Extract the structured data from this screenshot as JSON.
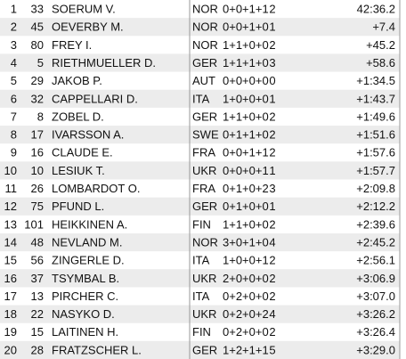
{
  "table": {
    "rows": [
      [
        1,
        33,
        "SOERUM V.",
        "NOR",
        "0+0+1+1",
        2,
        "42:36.2"
      ],
      [
        2,
        45,
        "OEVERBY M.",
        "NOR",
        "0+0+1+0",
        1,
        "+7.4"
      ],
      [
        3,
        80,
        "FREY I.",
        "NOR",
        "1+1+0+0",
        2,
        "+45.2"
      ],
      [
        4,
        5,
        "RIETHMUELLER D.",
        "GER",
        "1+1+1+0",
        3,
        "+58.6"
      ],
      [
        5,
        29,
        "JAKOB P.",
        "AUT",
        "0+0+0+0",
        0,
        "+1:34.5"
      ],
      [
        6,
        32,
        "CAPPELLARI D.",
        "ITA",
        "1+0+0+0",
        1,
        "+1:43.7"
      ],
      [
        7,
        8,
        "ZOBEL D.",
        "GER",
        "1+1+0+0",
        2,
        "+1:49.6"
      ],
      [
        8,
        17,
        "IVARSSON A.",
        "SWE",
        "0+1+1+0",
        2,
        "+1:51.6"
      ],
      [
        9,
        16,
        "CLAUDE E.",
        "FRA",
        "0+0+1+1",
        2,
        "+1:57.6"
      ],
      [
        10,
        10,
        "LESIUK T.",
        "UKR",
        "0+0+0+1",
        1,
        "+1:57.7"
      ],
      [
        11,
        26,
        "LOMBARDOT O.",
        "FRA",
        "0+1+0+2",
        3,
        "+2:09.8"
      ],
      [
        12,
        75,
        "PFUND L.",
        "GER",
        "0+1+0+0",
        1,
        "+2:12.2"
      ],
      [
        13,
        101,
        "HEIKKINEN A.",
        "FIN",
        "1+1+0+0",
        2,
        "+2:39.6"
      ],
      [
        14,
        48,
        "NEVLAND M.",
        "NOR",
        "3+0+1+0",
        4,
        "+2:45.2"
      ],
      [
        15,
        56,
        "ZINGERLE D.",
        "ITA",
        "1+0+0+1",
        2,
        "+2:56.1"
      ],
      [
        16,
        37,
        "TSYMBAL B.",
        "UKR",
        "2+0+0+0",
        2,
        "+3:06.9"
      ],
      [
        17,
        13,
        "PIRCHER C.",
        "ITA",
        "0+2+0+0",
        2,
        "+3:07.0"
      ],
      [
        18,
        22,
        "NASYKO D.",
        "UKR",
        "0+2+0+2",
        4,
        "+3:26.2"
      ],
      [
        19,
        15,
        "LAITINEN H.",
        "FIN",
        "0+2+0+0",
        2,
        "+3:26.4"
      ],
      [
        20,
        28,
        "FRATZSCHER L.",
        "GER",
        "1+2+1+1",
        5,
        "+3:29.0"
      ]
    ]
  }
}
